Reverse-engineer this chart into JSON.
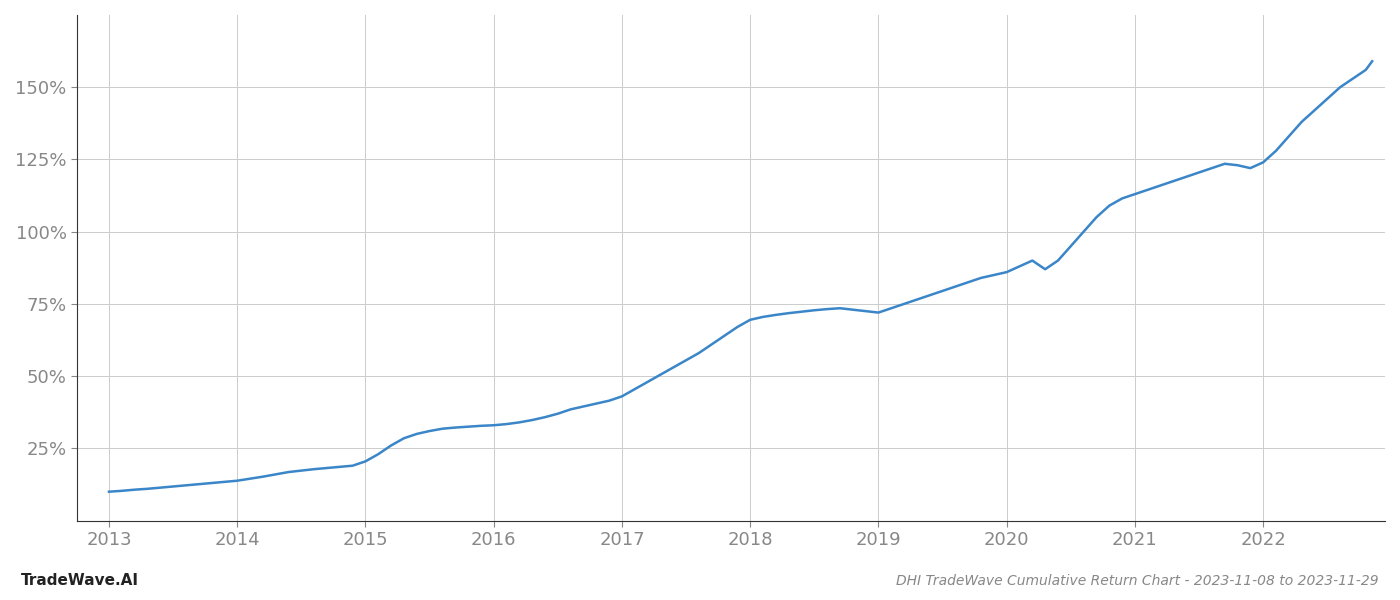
{
  "title": "DHI TradeWave Cumulative Return Chart - 2023-11-08 to 2023-11-29",
  "watermark": "TradeWave.AI",
  "line_color": "#3a86c8",
  "line_width": 1.8,
  "background_color": "#ffffff",
  "grid_color": "#cccccc",
  "x_years": [
    2013,
    2014,
    2015,
    2016,
    2017,
    2018,
    2019,
    2020,
    2021,
    2022
  ],
  "x_data": [
    2013.0,
    2013.1,
    2013.2,
    2013.3,
    2013.4,
    2013.5,
    2013.6,
    2013.7,
    2013.8,
    2013.9,
    2014.0,
    2014.1,
    2014.2,
    2014.3,
    2014.4,
    2014.5,
    2014.6,
    2014.7,
    2014.8,
    2014.9,
    2015.0,
    2015.1,
    2015.2,
    2015.3,
    2015.4,
    2015.5,
    2015.6,
    2015.7,
    2015.8,
    2015.9,
    2016.0,
    2016.1,
    2016.2,
    2016.3,
    2016.4,
    2016.5,
    2016.6,
    2016.7,
    2016.8,
    2016.9,
    2017.0,
    2017.1,
    2017.2,
    2017.3,
    2017.4,
    2017.5,
    2017.6,
    2017.7,
    2017.8,
    2017.9,
    2018.0,
    2018.1,
    2018.2,
    2018.3,
    2018.4,
    2018.5,
    2018.6,
    2018.7,
    2018.8,
    2018.9,
    2019.0,
    2019.1,
    2019.2,
    2019.3,
    2019.4,
    2019.5,
    2019.6,
    2019.7,
    2019.8,
    2019.9,
    2020.0,
    2020.1,
    2020.2,
    2020.3,
    2020.4,
    2020.5,
    2020.6,
    2020.7,
    2020.8,
    2020.9,
    2021.0,
    2021.1,
    2021.2,
    2021.3,
    2021.4,
    2021.5,
    2021.6,
    2021.7,
    2021.8,
    2021.9,
    2022.0,
    2022.1,
    2022.2,
    2022.3,
    2022.4,
    2022.5,
    2022.6,
    2022.7,
    2022.8,
    2022.85
  ],
  "y_data": [
    10.0,
    10.3,
    10.7,
    11.0,
    11.4,
    11.8,
    12.2,
    12.6,
    13.0,
    13.4,
    13.8,
    14.5,
    15.2,
    16.0,
    16.8,
    17.3,
    17.8,
    18.2,
    18.6,
    19.0,
    20.5,
    23.0,
    26.0,
    28.5,
    30.0,
    31.0,
    31.8,
    32.2,
    32.5,
    32.8,
    33.0,
    33.4,
    34.0,
    34.8,
    35.8,
    37.0,
    38.5,
    39.5,
    40.5,
    41.5,
    43.0,
    45.5,
    48.0,
    50.5,
    53.0,
    55.5,
    58.0,
    61.0,
    64.0,
    67.0,
    69.5,
    70.5,
    71.2,
    71.8,
    72.3,
    72.8,
    73.2,
    73.5,
    73.0,
    72.5,
    72.0,
    73.5,
    75.0,
    76.5,
    78.0,
    79.5,
    81.0,
    82.5,
    84.0,
    85.0,
    86.0,
    88.0,
    90.0,
    87.0,
    90.0,
    95.0,
    100.0,
    105.0,
    109.0,
    111.5,
    113.0,
    114.5,
    116.0,
    117.5,
    119.0,
    120.5,
    122.0,
    123.5,
    123.0,
    122.0,
    124.0,
    128.0,
    133.0,
    138.0,
    142.0,
    146.0,
    150.0,
    153.0,
    156.0,
    159.0
  ],
  "yticks": [
    25,
    50,
    75,
    100,
    125,
    150
  ],
  "ylim": [
    0,
    175
  ],
  "xlim": [
    2012.75,
    2022.95
  ],
  "ylabel_fontsize": 13,
  "xlabel_fontsize": 13,
  "title_fontsize": 10,
  "watermark_fontsize": 11,
  "tick_color": "#888888",
  "spine_color": "#333333"
}
